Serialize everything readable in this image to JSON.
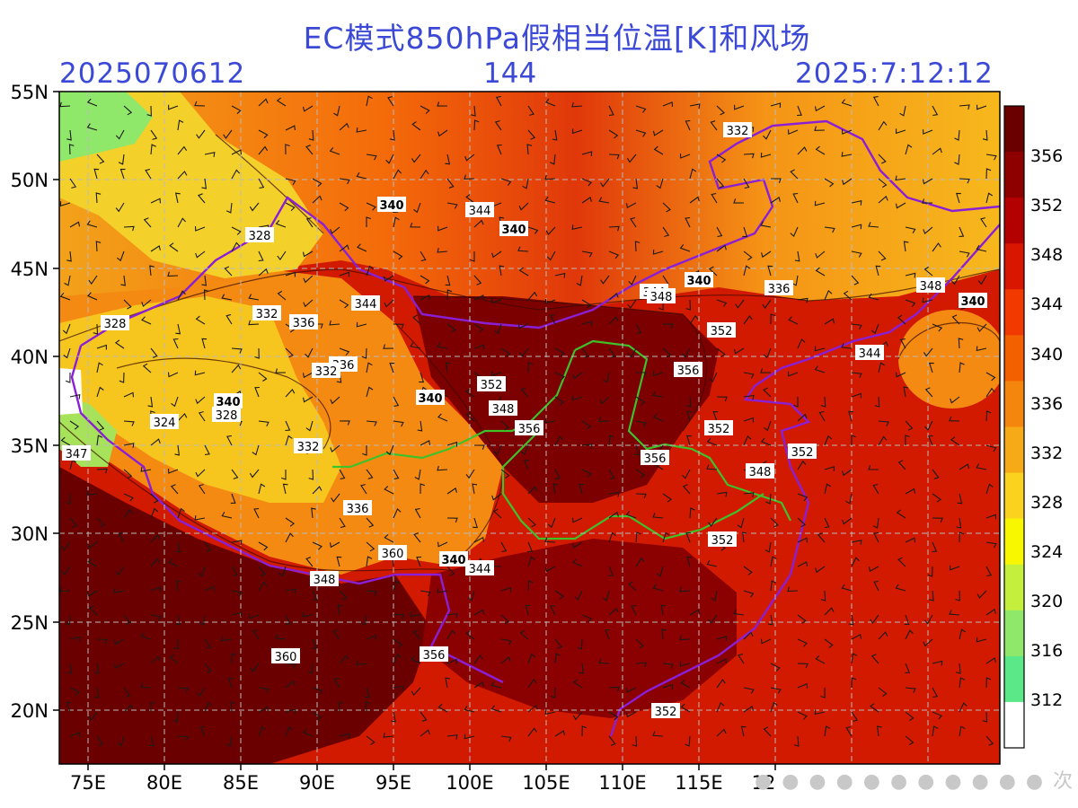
{
  "header": {
    "title": "EC模式850hPa假相当位温[K]和风场",
    "run_time": "2025070612",
    "forecast_hour": "144",
    "valid_time": "2025:7:12:12"
  },
  "axes": {
    "lon_labels": [
      "75E",
      "80E",
      "85E",
      "90E",
      "95E",
      "100E",
      "105E",
      "110E",
      "115E",
      "12"
    ],
    "lat_labels": [
      "55N",
      "50N",
      "45N",
      "40N",
      "35N",
      "30N",
      "25N",
      "20N"
    ]
  },
  "colorbar": {
    "labels": [
      "356",
      "352",
      "348",
      "344",
      "340",
      "336",
      "332",
      "328",
      "324",
      "320",
      "316",
      "312"
    ],
    "colors": [
      "#6b0000",
      "#8e0000",
      "#b30000",
      "#d91600",
      "#f23a00",
      "#f36000",
      "#f5860d",
      "#f7aa17",
      "#fbd21e",
      "#f9f700",
      "#c4ef3c",
      "#8fe86a",
      "#5be888",
      "#ffffff"
    ]
  },
  "contour_labels": [
    {
      "text": "332"
    },
    {
      "text": "340"
    },
    {
      "text": "344"
    },
    {
      "text": "340"
    },
    {
      "text": "328"
    },
    {
      "text": "344"
    },
    {
      "text": "348"
    },
    {
      "text": "340"
    },
    {
      "text": "336"
    },
    {
      "text": "348"
    },
    {
      "text": "340"
    },
    {
      "text": "328"
    },
    {
      "text": "332"
    },
    {
      "text": "336"
    },
    {
      "text": "352"
    },
    {
      "text": "344"
    },
    {
      "text": "336"
    },
    {
      "text": "332"
    },
    {
      "text": "356"
    },
    {
      "text": "340"
    },
    {
      "text": "352"
    },
    {
      "text": "344"
    },
    {
      "text": "340"
    },
    {
      "text": "328"
    },
    {
      "text": "348"
    },
    {
      "text": "356"
    },
    {
      "text": "324"
    },
    {
      "text": "352"
    },
    {
      "text": "352"
    },
    {
      "text": "332"
    },
    {
      "text": "356"
    },
    {
      "text": "347"
    },
    {
      "text": "348"
    },
    {
      "text": "336"
    },
    {
      "text": "360"
    },
    {
      "text": "340"
    },
    {
      "text": "344"
    },
    {
      "text": "352"
    },
    {
      "text": "348"
    },
    {
      "text": "360"
    },
    {
      "text": "356"
    },
    {
      "text": "352"
    }
  ],
  "watermark": "次"
}
